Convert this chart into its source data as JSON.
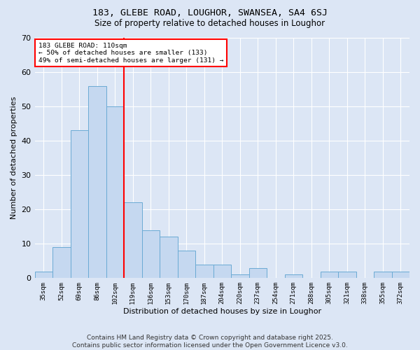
{
  "title": "183, GLEBE ROAD, LOUGHOR, SWANSEA, SA4 6SJ",
  "subtitle": "Size of property relative to detached houses in Loughor",
  "xlabel": "Distribution of detached houses by size in Loughor",
  "ylabel": "Number of detached properties",
  "categories": [
    "35sqm",
    "52sqm",
    "69sqm",
    "86sqm",
    "102sqm",
    "119sqm",
    "136sqm",
    "153sqm",
    "170sqm",
    "187sqm",
    "204sqm",
    "220sqm",
    "237sqm",
    "254sqm",
    "271sqm",
    "288sqm",
    "305sqm",
    "321sqm",
    "338sqm",
    "355sqm",
    "372sqm"
  ],
  "values": [
    2,
    9,
    43,
    56,
    50,
    22,
    14,
    12,
    8,
    4,
    4,
    1,
    3,
    0,
    1,
    0,
    2,
    2,
    0,
    2,
    2
  ],
  "bar_color": "#c5d8f0",
  "bar_edge_color": "#6aaad4",
  "vline_x_index": 4.5,
  "vline_color": "red",
  "annotation_text": "183 GLEBE ROAD: 110sqm\n← 50% of detached houses are smaller (133)\n49% of semi-detached houses are larger (131) →",
  "annotation_box_color": "white",
  "annotation_box_edge": "red",
  "ylim": [
    0,
    70
  ],
  "yticks": [
    0,
    10,
    20,
    30,
    40,
    50,
    60,
    70
  ],
  "footer": "Contains HM Land Registry data © Crown copyright and database right 2025.\nContains public sector information licensed under the Open Government Licence v3.0.",
  "bg_color": "#dce6f5",
  "plot_bg_color": "#dce6f5",
  "title_fontsize": 9.5,
  "subtitle_fontsize": 8.5,
  "footer_fontsize": 6.5
}
